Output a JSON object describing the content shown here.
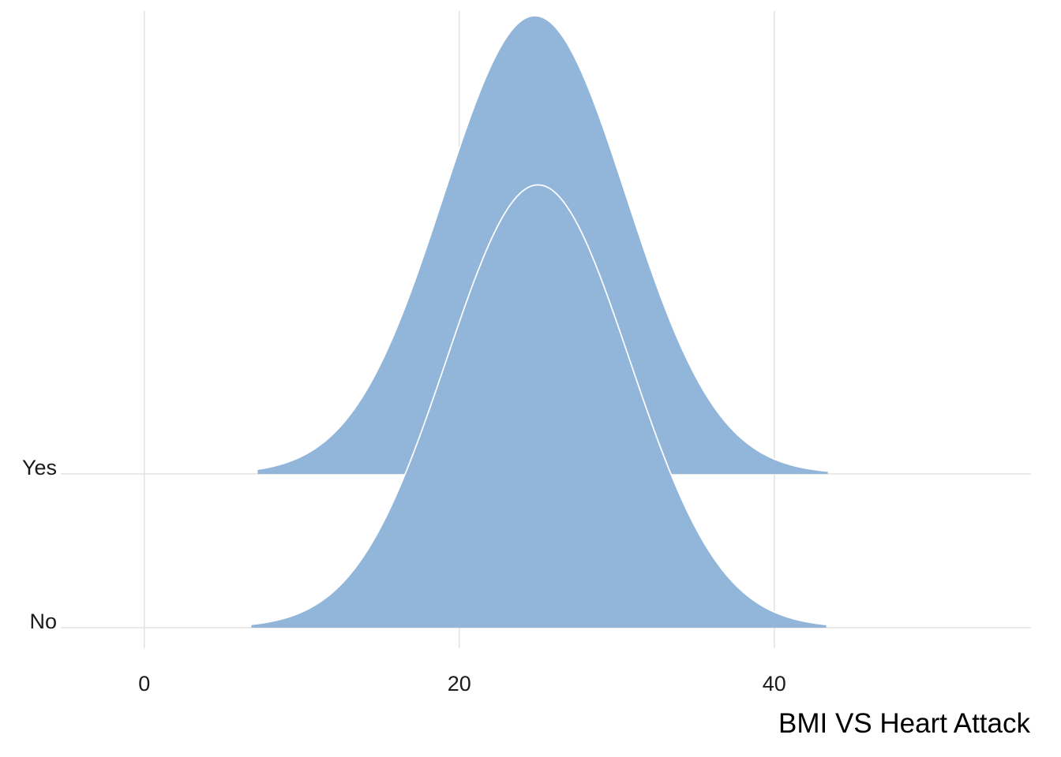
{
  "chart_data": {
    "type": "area",
    "subtype": "ridgeline-density",
    "xlabel": "BMI VS Heart Attack",
    "ylabel": "",
    "xlim": [
      -5.3,
      56.3
    ],
    "x_ticks": [
      0,
      20,
      40
    ],
    "categories": [
      "No",
      "Yes"
    ],
    "grid": true,
    "legend": "none",
    "fill_color": "#92b6da",
    "outline_color": "#ffffff",
    "series": [
      {
        "name": "No",
        "x_min": 6.8,
        "x_max": 43.3,
        "mode": 25.0,
        "sd": 5.8,
        "peak_height": 2.88
      },
      {
        "name": "Yes",
        "x_min": 7.2,
        "x_max": 43.4,
        "mode": 24.8,
        "sd": 5.8,
        "peak_height": 2.98
      }
    ]
  }
}
